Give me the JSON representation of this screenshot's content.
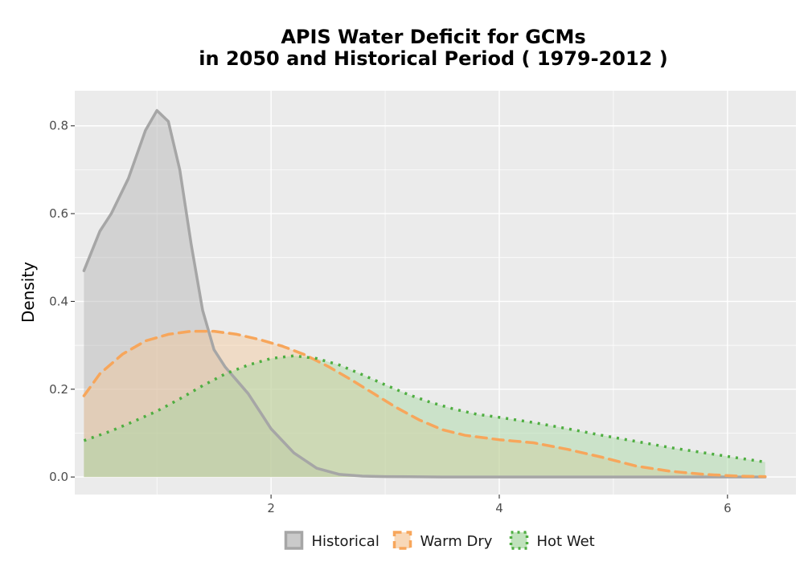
{
  "chart_data": {
    "type": "area",
    "title_lines": [
      "APIS  Water Deficit for GCMs",
      "in 2050 and Historical Period ( 1979-2012 )"
    ],
    "xlabel": "",
    "ylabel": "Density",
    "xlim": [
      0.28,
      6.6
    ],
    "ylim": [
      -0.04,
      0.88
    ],
    "x_ticks": [
      2,
      4,
      6
    ],
    "x_tick_labels": [
      "2",
      "4",
      "6"
    ],
    "y_ticks": [
      0.0,
      0.2,
      0.4,
      0.6,
      0.8
    ],
    "y_tick_labels": [
      "0.0",
      "0.2",
      "0.4",
      "0.6",
      "0.8"
    ],
    "grid": true,
    "legend_position": "bottom",
    "series": [
      {
        "name": "Historical",
        "color": "#a6a6a6",
        "fill": "#b3b3b3",
        "line_style": "solid",
        "x": [
          0.36,
          0.5,
          0.6,
          0.75,
          0.9,
          1.0,
          1.1,
          1.2,
          1.3,
          1.4,
          1.5,
          1.6,
          1.7,
          1.8,
          1.9,
          2.0,
          2.2,
          2.4,
          2.6,
          2.8,
          3.0,
          3.5,
          4.0,
          5.0,
          6.0,
          6.33
        ],
        "y": [
          0.47,
          0.56,
          0.6,
          0.68,
          0.79,
          0.835,
          0.81,
          0.7,
          0.53,
          0.38,
          0.29,
          0.25,
          0.22,
          0.19,
          0.15,
          0.11,
          0.055,
          0.02,
          0.006,
          0.002,
          0.001,
          0.0,
          0.0,
          0.0,
          0.0,
          0.0
        ]
      },
      {
        "name": "Warm Dry",
        "color": "#f7a65b",
        "fill": "#f5c79a",
        "line_style": "dashed",
        "x": [
          0.36,
          0.5,
          0.7,
          0.9,
          1.1,
          1.3,
          1.5,
          1.7,
          1.9,
          2.1,
          2.3,
          2.5,
          2.7,
          2.9,
          3.1,
          3.3,
          3.5,
          3.7,
          4.0,
          4.3,
          4.6,
          4.9,
          5.2,
          5.5,
          5.8,
          6.1,
          6.33
        ],
        "y": [
          0.185,
          0.235,
          0.28,
          0.31,
          0.325,
          0.332,
          0.332,
          0.325,
          0.313,
          0.298,
          0.278,
          0.252,
          0.222,
          0.19,
          0.158,
          0.13,
          0.108,
          0.095,
          0.085,
          0.078,
          0.063,
          0.045,
          0.025,
          0.013,
          0.006,
          0.002,
          0.001
        ]
      },
      {
        "name": "Hot Wet",
        "color": "#4fae41",
        "fill": "#a5d6a0",
        "line_style": "dotted",
        "x": [
          0.36,
          0.6,
          0.8,
          1.0,
          1.2,
          1.4,
          1.6,
          1.8,
          2.0,
          2.2,
          2.4,
          2.6,
          2.8,
          3.0,
          3.2,
          3.4,
          3.6,
          3.8,
          4.0,
          4.3,
          4.6,
          4.9,
          5.2,
          5.5,
          5.8,
          6.1,
          6.33
        ],
        "y": [
          0.083,
          0.105,
          0.127,
          0.15,
          0.178,
          0.208,
          0.235,
          0.255,
          0.27,
          0.276,
          0.27,
          0.255,
          0.233,
          0.21,
          0.188,
          0.17,
          0.155,
          0.143,
          0.136,
          0.124,
          0.11,
          0.095,
          0.081,
          0.067,
          0.055,
          0.043,
          0.034
        ]
      }
    ]
  }
}
